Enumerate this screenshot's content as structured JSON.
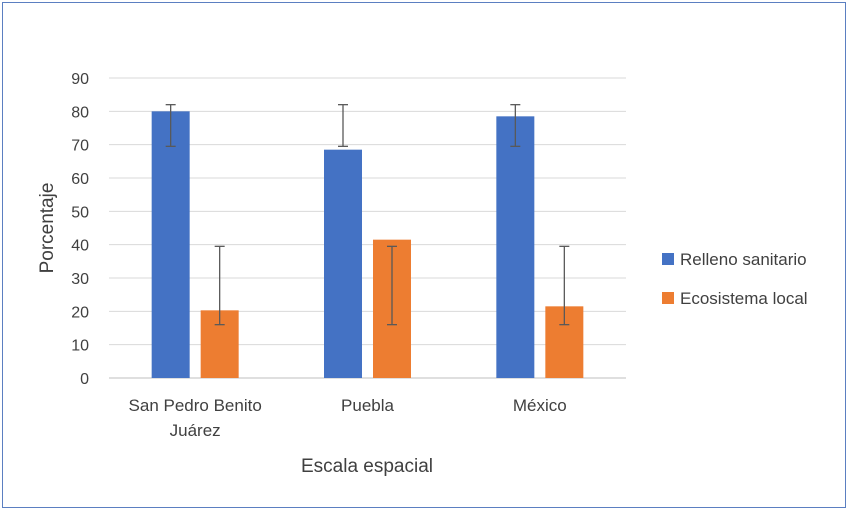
{
  "chart_data": {
    "type": "bar",
    "title": "",
    "xlabel": "Escala espacial",
    "ylabel": "Porcentaje",
    "ylim": [
      0,
      90
    ],
    "yticks": [
      0,
      10,
      20,
      30,
      40,
      50,
      60,
      70,
      80,
      90
    ],
    "categories": [
      [
        "San Pedro Benito",
        "Juárez"
      ],
      [
        "Puebla"
      ],
      [
        "México"
      ]
    ],
    "series": [
      {
        "name": "Relleno sanitario",
        "color": "#4472c4",
        "values": [
          80,
          68.5,
          78.5
        ],
        "error_low": [
          69.5,
          69.5,
          69.5
        ],
        "error_high": [
          82,
          82,
          82
        ]
      },
      {
        "name": "Ecosistema local",
        "color": "#ed7d31",
        "values": [
          20.3,
          41.5,
          21.5
        ],
        "error_low": [
          16,
          16,
          16
        ],
        "error_high": [
          39.5,
          39.5,
          39.5
        ]
      }
    ],
    "grid": true,
    "legend_position": "right"
  }
}
